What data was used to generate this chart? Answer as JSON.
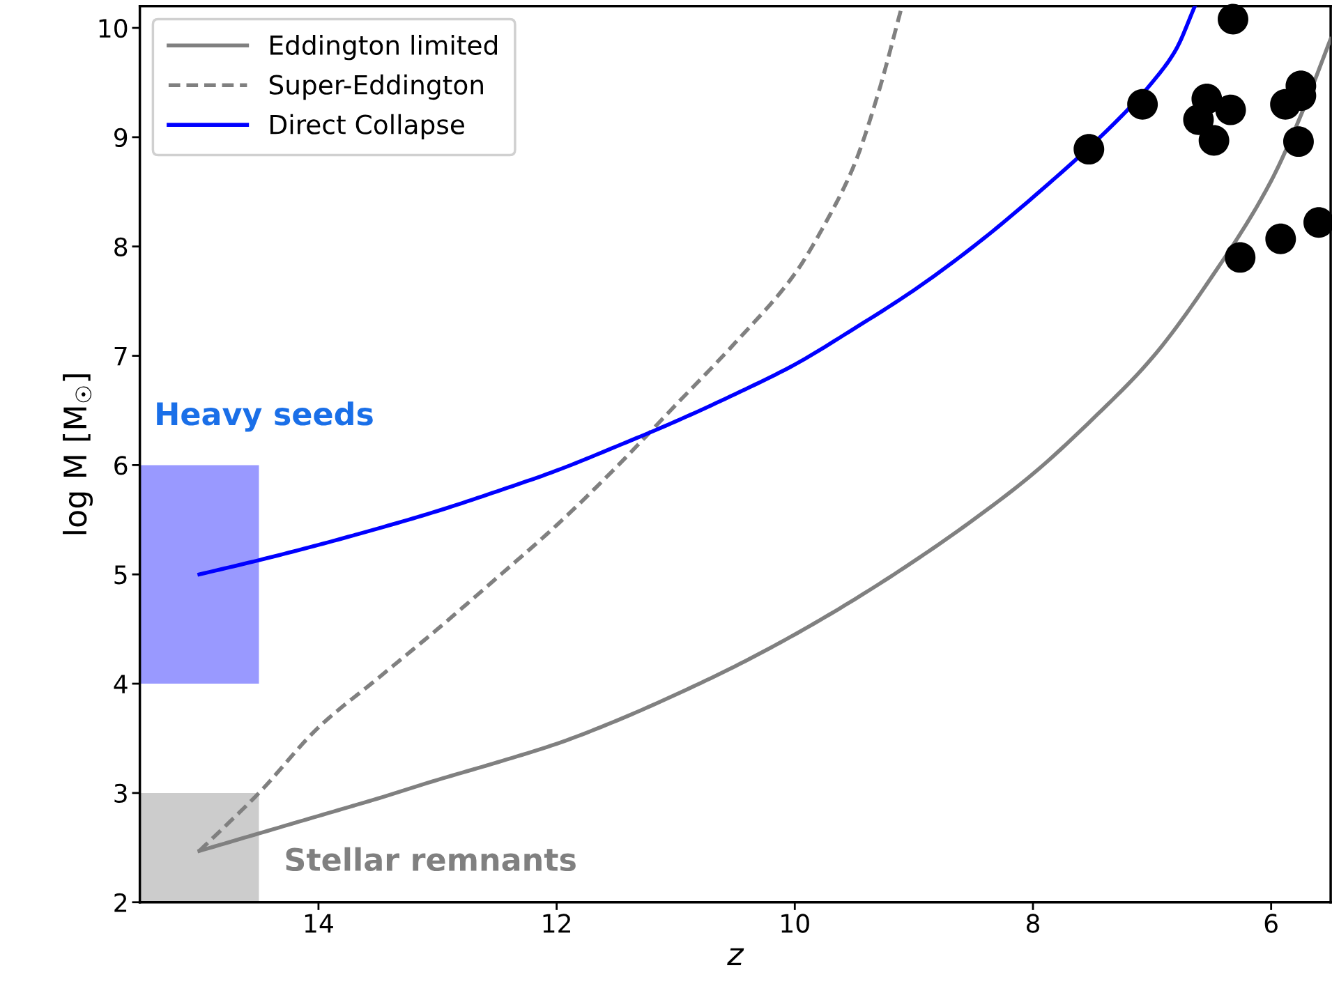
{
  "chart_data": {
    "type": "line",
    "xlabel": "z",
    "ylabel": "log M [M$_{☉}$]",
    "xlim": [
      15.5,
      5.5
    ],
    "xticks": [
      14,
      12,
      10,
      8,
      6
    ],
    "ylim": [
      2,
      10.2
    ],
    "yticks": [
      2,
      3,
      4,
      5,
      6,
      7,
      8,
      9,
      10
    ],
    "grid": false,
    "legend": "top left",
    "series": [
      {
        "type": "bar",
        "color": "#cccccc",
        "x": [
          15
        ],
        "base": [
          2
        ],
        "values": [
          1
        ]
      },
      {
        "type": "bar",
        "color": "#9999ff",
        "x": [
          15
        ],
        "base": [
          4
        ],
        "values": [
          2
        ]
      },
      {
        "name": "Eddington limited",
        "line_style": "solid",
        "color": "#808080",
        "x": [
          15,
          14.5,
          14,
          13.5,
          13,
          12.5,
          12,
          11.5,
          11,
          10.5,
          10,
          9.5,
          9,
          8.5,
          8,
          7.5,
          7,
          6.5,
          6,
          5.75,
          5.5
        ],
        "values": [
          2.47,
          2.63,
          2.79,
          2.95,
          3.12,
          3.28,
          3.45,
          3.66,
          3.9,
          4.16,
          4.45,
          4.77,
          5.12,
          5.5,
          5.92,
          6.42,
          6.98,
          7.72,
          8.6,
          9.2,
          9.9
        ]
      },
      {
        "name": "Super-Eddington",
        "line_style": "dashed",
        "color": "#808080",
        "x": [
          15,
          14.5,
          14,
          13.5,
          13,
          12.5,
          12,
          11.5,
          11,
          10.5,
          10,
          9.75,
          9.5,
          9.3,
          9.1
        ],
        "values": [
          2.47,
          3.0,
          3.6,
          4.05,
          4.5,
          4.97,
          5.45,
          5.98,
          6.55,
          7.12,
          7.75,
          8.2,
          8.75,
          9.4,
          10.2
        ]
      },
      {
        "name": "Direct Collapse",
        "line_style": "solid",
        "color": "#0000ff",
        "x": [
          15,
          14.5,
          14,
          13.5,
          13,
          12.5,
          12,
          11.5,
          11,
          10.5,
          10,
          9.5,
          9,
          8.5,
          8,
          7.25,
          7,
          6.8,
          6.64
        ],
        "values": [
          5.0,
          5.13,
          5.27,
          5.42,
          5.58,
          5.76,
          5.95,
          6.17,
          6.4,
          6.65,
          6.92,
          7.25,
          7.6,
          8.0,
          8.45,
          9.2,
          9.5,
          9.8,
          10.2
        ]
      },
      {
        "type": "scatter",
        "marker": "circle",
        "color": "#000000",
        "x": [
          7.53,
          7.08,
          6.32,
          6.54,
          6.61,
          6.34,
          6.48,
          5.88,
          5.75,
          5.75,
          5.77,
          6.26,
          5.92,
          5.6
        ],
        "values": [
          8.89,
          9.3,
          10.08,
          9.35,
          9.16,
          9.25,
          8.97,
          9.3,
          9.47,
          9.38,
          8.96,
          7.9,
          8.07,
          8.22
        ]
      }
    ],
    "annotations": [
      "Heavy seeds",
      "Stellar remnants"
    ]
  }
}
